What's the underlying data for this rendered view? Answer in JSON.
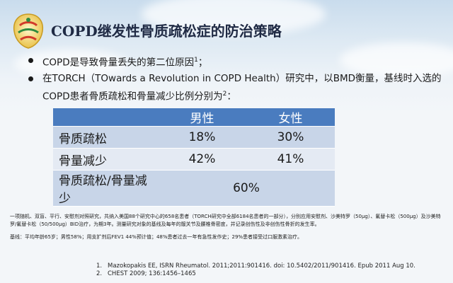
{
  "title": "COPD继发性骨质疏松症的防治策略",
  "logo": {
    "name": "logo-emblem"
  },
  "bullets": [
    {
      "text": "COPD是导致骨量丢失的第二位原因",
      "sup": "1",
      "tail": "；"
    },
    {
      "text": "在TORCH（TOwards a Revolution in COPD Health）研究中，以BMD衡量，基线时入选的COPD患者骨质疏松和骨量减少比例分别为",
      "sup": "2",
      "tail": "："
    }
  ],
  "table": {
    "headers": [
      "",
      "男性",
      "女性"
    ],
    "rows": [
      {
        "label": "骨质疏松",
        "male": "18%",
        "female": "30%"
      },
      {
        "label": "骨量减少",
        "male": "42%",
        "female": "41%"
      },
      {
        "label": "骨质疏松/骨量减少",
        "combined": "60%"
      }
    ]
  },
  "notes": [
    "一项随机、双盲、平行、安慰剂对照研究，共纳入美国88个研究中心的658名患者（TORCH研究中全部6184名患者的一部分），分别应用安慰剂、沙美特罗（50μg）、氟替卡松（500μg）及沙美特罗/氟替卡松（50/500μg）BID治疗，为期3年。测量研究对象的基线及每年的髋关节及腰椎骨密度，并记录创伤性及非创伤性骨折的发生率。",
    "基线：平均年龄65岁；男性58%；用支扩剂后FEV1 44%预计值；48%患者过去一年有急性发作史；29%患者接受过口服激素治疗。"
  ],
  "references": [
    {
      "num": "1.",
      "text": "Mazokopakis EE, ISRN Rheumatol. 2011;2011:901416. doi: 10.5402/2011/901416. Epub 2011 Aug 10."
    },
    {
      "num": "2.",
      "text": "CHEST 2009; 136:1456–1465"
    }
  ],
  "colors": {
    "header_bg": "#4a7cbf",
    "row_dark": "#c8d5e8",
    "row_light": "#e4eaf3"
  }
}
